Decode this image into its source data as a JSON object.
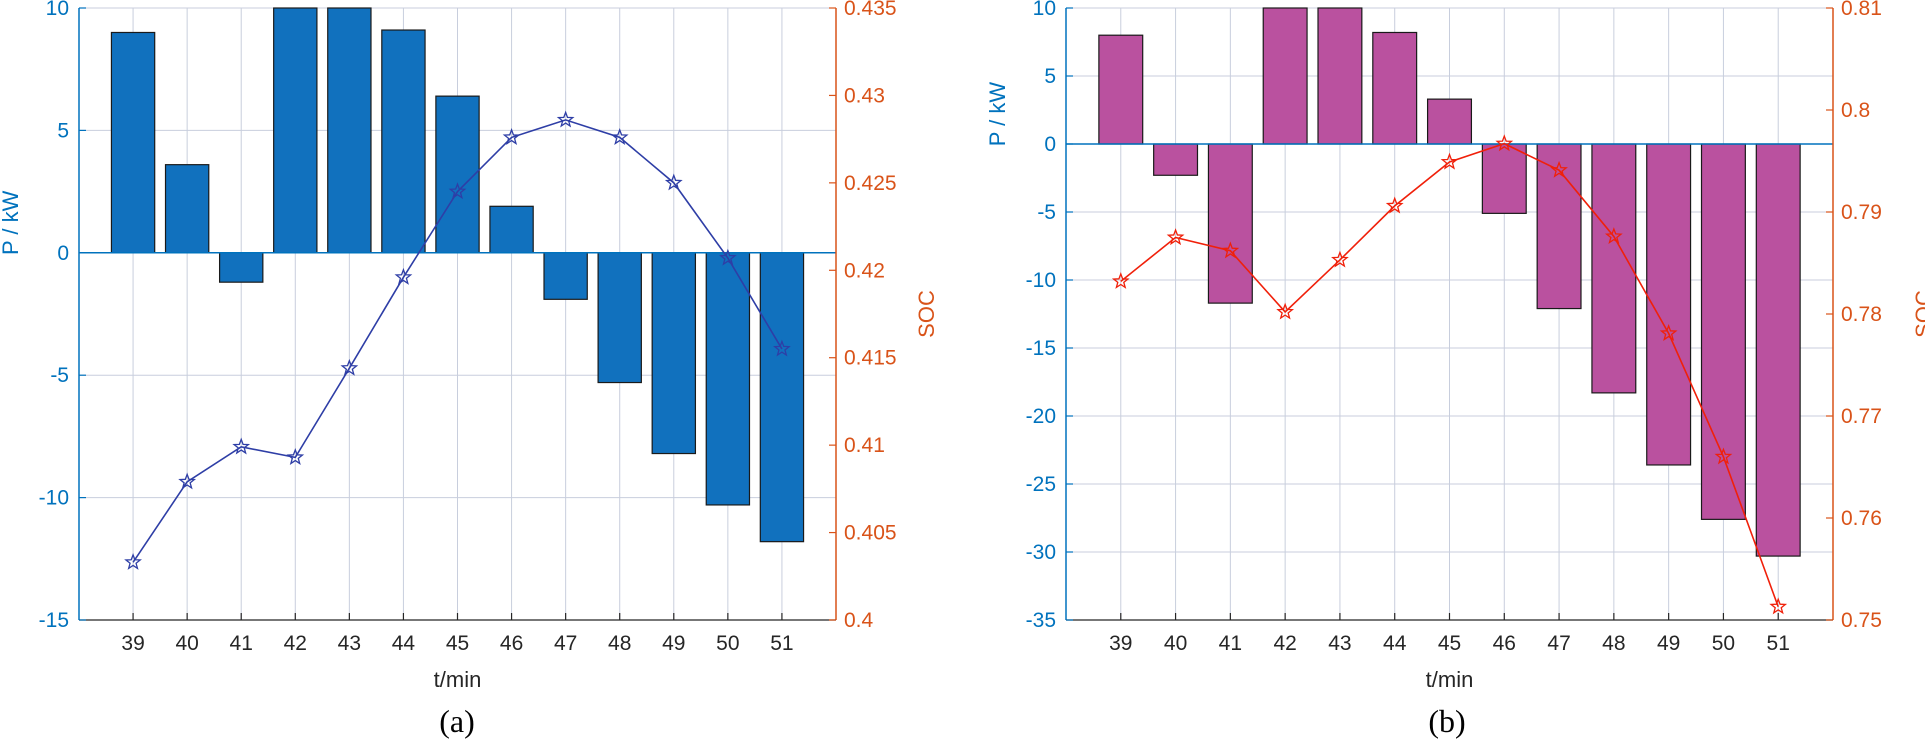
{
  "colors": {
    "left_axis": "#0072BD",
    "right_axis": "#D95319",
    "grid": "#c8cedd",
    "bar_a": "#1171BE",
    "line_a": "#2E3EA6",
    "bar_b": "#BA519F",
    "line_b": "#F0200A"
  },
  "chart_data": [
    {
      "type": "bar",
      "caption": "(a)",
      "xlabel": "t/min",
      "ylabel": "P / kW",
      "y2label": "SOC",
      "categories": [
        "39",
        "40",
        "41",
        "42",
        "43",
        "44",
        "45",
        "46",
        "47",
        "48",
        "49",
        "50",
        "51"
      ],
      "ylim": [
        -15,
        10
      ],
      "yticks": [
        -15,
        -10,
        -5,
        0,
        5,
        10
      ],
      "y2lim": [
        0.4,
        0.435
      ],
      "y2ticks": [
        "0.4",
        "0.405",
        "0.41",
        "0.415",
        "0.42",
        "0.425",
        "0.43",
        "0.435"
      ],
      "grid": true,
      "series": [
        {
          "kind": "bar",
          "axis": "left",
          "values": [
            9.0,
            3.6,
            -1.2,
            10.0,
            10.0,
            9.1,
            6.4,
            1.9,
            -1.9,
            -5.3,
            -8.2,
            -10.3,
            -11.8
          ]
        },
        {
          "kind": "line",
          "axis": "right",
          "marker": "star",
          "values": [
            0.4033,
            0.4079,
            0.4099,
            0.4093,
            0.4144,
            0.4196,
            0.4245,
            0.4276,
            0.4286,
            0.4276,
            0.425,
            0.4207,
            0.4155
          ]
        }
      ]
    },
    {
      "type": "bar",
      "caption": "(b)",
      "xlabel": "t/min",
      "ylabel": "P / kW",
      "y2label": "SOC",
      "categories": [
        "39",
        "40",
        "41",
        "42",
        "43",
        "44",
        "45",
        "46",
        "47",
        "48",
        "49",
        "50",
        "51"
      ],
      "ylim": [
        -35,
        10
      ],
      "yticks": [
        -35,
        -30,
        -25,
        -20,
        -15,
        -10,
        -5,
        0,
        5,
        10
      ],
      "y2lim": [
        0.75,
        0.81
      ],
      "y2ticks": [
        "0.75",
        "0.76",
        "0.77",
        "0.78",
        "0.79",
        "0.8",
        "0.81"
      ],
      "grid": true,
      "series": [
        {
          "kind": "bar",
          "axis": "left",
          "values": [
            8.0,
            -2.3,
            -11.7,
            10.0,
            10.0,
            8.2,
            3.3,
            -5.1,
            -12.1,
            -18.3,
            -23.6,
            -27.6,
            -30.3
          ]
        },
        {
          "kind": "line",
          "axis": "right",
          "marker": "star",
          "values": [
            0.7832,
            0.7875,
            0.7862,
            0.7802,
            0.7853,
            0.7906,
            0.7949,
            0.7967,
            0.7941,
            0.7876,
            0.7781,
            0.766,
            0.7513
          ]
        }
      ]
    }
  ]
}
